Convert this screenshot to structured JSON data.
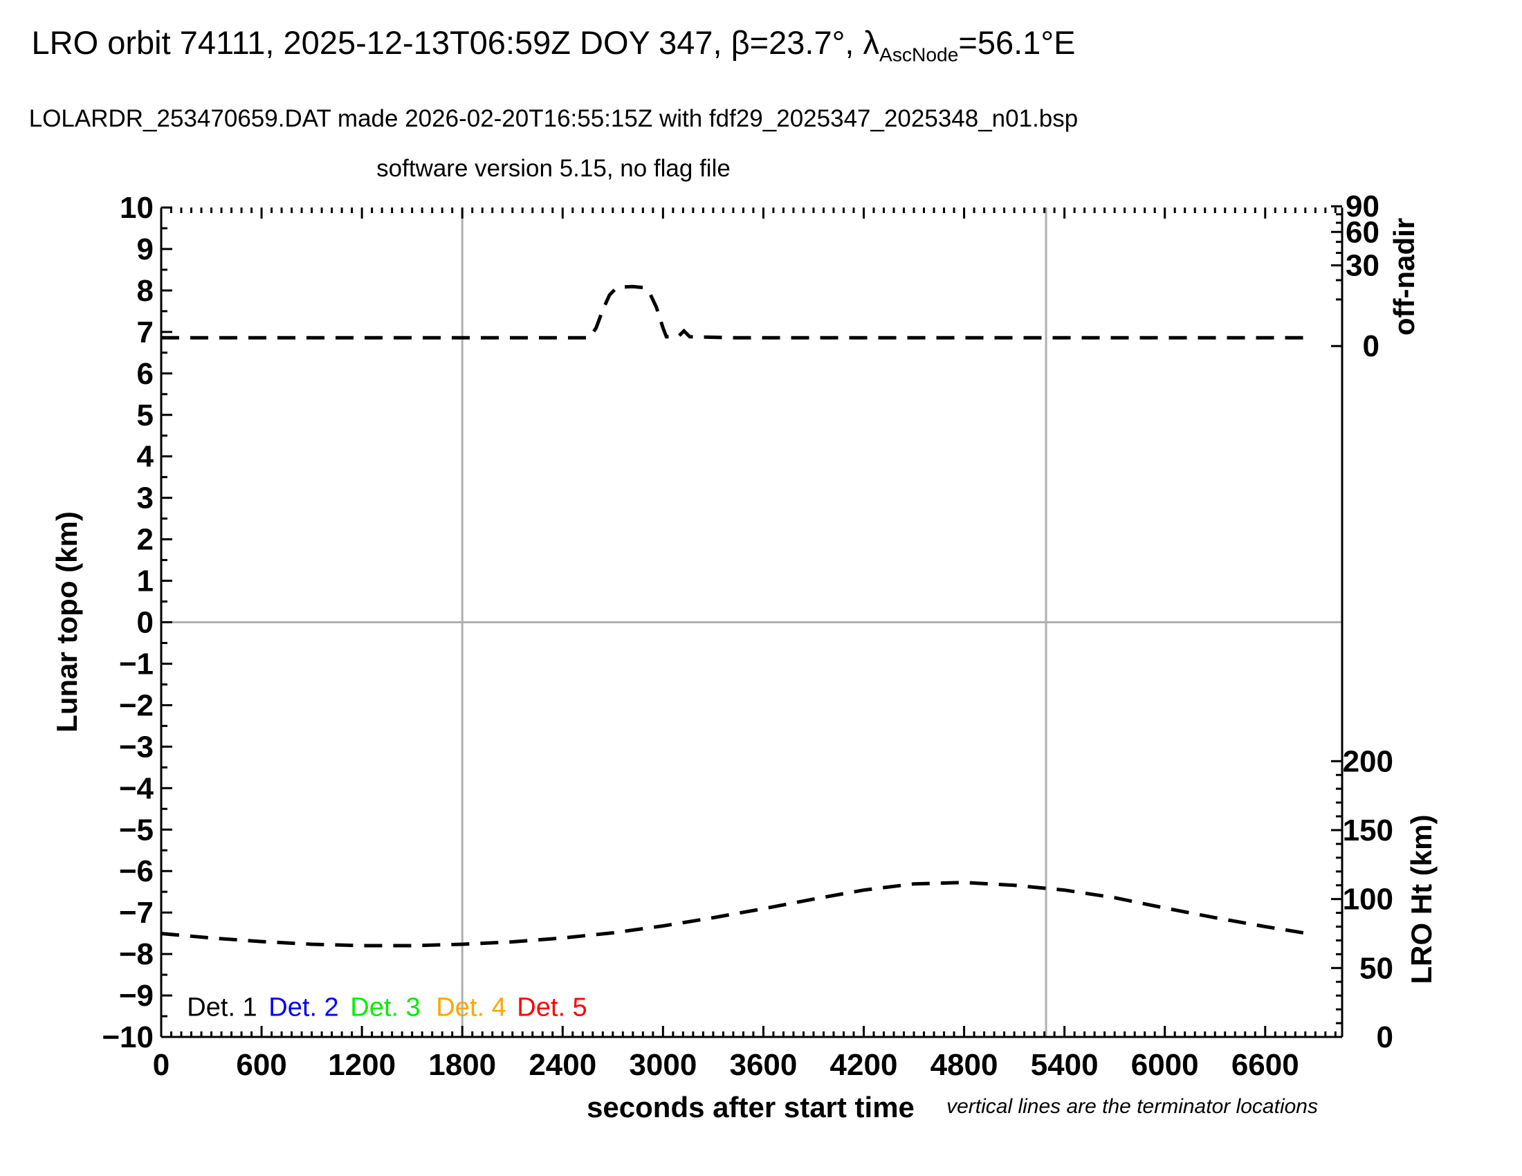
{
  "heading": {
    "title_prefix": "LRO orbit 74111, 2025-12-13T06:59Z DOY 347, β=23.7°, λ",
    "title_subscript": "AscNode",
    "title_suffix": "=56.1°E",
    "line2": "LOLARDR_253470659.DAT made 2026-02-20T16:55:15Z with fdf29_2025347_2025348_n01.bsp",
    "line3": "software version 5.15, no flag file"
  },
  "footnote": "vertical lines are the terminator locations",
  "axis_titles": {
    "left": "Lunar topo (km)",
    "right_top": "off-nadir",
    "right_bottom": "LRO Ht (km)",
    "bottom": "seconds after start time"
  },
  "colors": {
    "axis": "#000000",
    "guide_gray": "#b0b0b0",
    "series": "#000000"
  },
  "chart_data": {
    "type": "line",
    "title": "LRO orbit 74111, 2025-12-13T06:59Z DOY 347, beta=23.7 deg, lambda_AscNode=56.1E",
    "xlabel": "seconds after start time",
    "x": {
      "min": 0,
      "max": 7060,
      "major_ticks": [
        0,
        600,
        1200,
        1800,
        2400,
        3000,
        3600,
        4200,
        4800,
        5400,
        6000,
        6600
      ],
      "minor_tick_step": 60
    },
    "y_left": {
      "label": "Lunar topo (km)",
      "min": -10,
      "max": 10,
      "major_tick_step": 1,
      "minor_tick_step": 0.5
    },
    "y_right_top": {
      "label": "off-nadir",
      "unit": "deg",
      "scale": "sqrt",
      "ticks": [
        0,
        10,
        20,
        30,
        40,
        50,
        60,
        70,
        80,
        90
      ],
      "labeled_ticks": [
        90,
        60,
        30,
        0
      ],
      "topo_at_0": 6.66,
      "topo_at_90": 10.03
    },
    "y_right_bottom": {
      "label": "LRO Ht (km)",
      "min": 0,
      "max": 200,
      "major_ticks": [
        200,
        150,
        100,
        50,
        0
      ],
      "minor_tick_step": 10,
      "topo_at_0": -10,
      "topo_at_200": -3.35
    },
    "zero_line_topo": 0,
    "terminator_lines_s": [
      1800,
      5290
    ],
    "grid": "off",
    "legend_position": "bottom-left-inside",
    "series": [
      {
        "name": "off-nadir angle",
        "axis": "right_top",
        "unit": "deg",
        "style": "dashed",
        "color": "#000000",
        "points": [
          [
            0,
            0.32
          ],
          [
            2560,
            0.32
          ],
          [
            2600,
            1.5
          ],
          [
            2640,
            6.0
          ],
          [
            2680,
            12.0
          ],
          [
            2720,
            15.5
          ],
          [
            2760,
            16.1
          ],
          [
            2820,
            16.3
          ],
          [
            2880,
            15.8
          ],
          [
            2920,
            13.0
          ],
          [
            2960,
            7.0
          ],
          [
            3000,
            1.5
          ],
          [
            3020,
            0.4
          ],
          [
            3090,
            0.4
          ],
          [
            3125,
            1.05
          ],
          [
            3160,
            0.4
          ],
          [
            3400,
            0.32
          ],
          [
            6880,
            0.32
          ]
        ]
      },
      {
        "name": "LRO height",
        "axis": "right_bottom",
        "unit": "km",
        "style": "dashed",
        "color": "#000000",
        "points": [
          [
            0,
            75
          ],
          [
            300,
            71.8
          ],
          [
            600,
            69.2
          ],
          [
            900,
            67.2
          ],
          [
            1200,
            66.2
          ],
          [
            1500,
            66.2
          ],
          [
            1800,
            67.2
          ],
          [
            2100,
            69.0
          ],
          [
            2400,
            71.8
          ],
          [
            2700,
            75.5
          ],
          [
            3000,
            80.5
          ],
          [
            3300,
            86.5
          ],
          [
            3600,
            93.0
          ],
          [
            3900,
            100.0
          ],
          [
            4200,
            106.5
          ],
          [
            4500,
            111.0
          ],
          [
            4800,
            112.0
          ],
          [
            5100,
            110.0
          ],
          [
            5400,
            106.5
          ],
          [
            5700,
            101.0
          ],
          [
            6000,
            93.5
          ],
          [
            6300,
            86.5
          ],
          [
            6600,
            80.0
          ],
          [
            6880,
            74.5
          ]
        ]
      }
    ],
    "legend": [
      {
        "label": "Det. 1",
        "color": "#000000"
      },
      {
        "label": "Det. 2",
        "color": "#0000ff"
      },
      {
        "label": "Det. 3",
        "color": "#00ee00"
      },
      {
        "label": "Det. 4",
        "color": "#ffa500"
      },
      {
        "label": "Det. 5",
        "color": "#ff0000"
      }
    ]
  }
}
